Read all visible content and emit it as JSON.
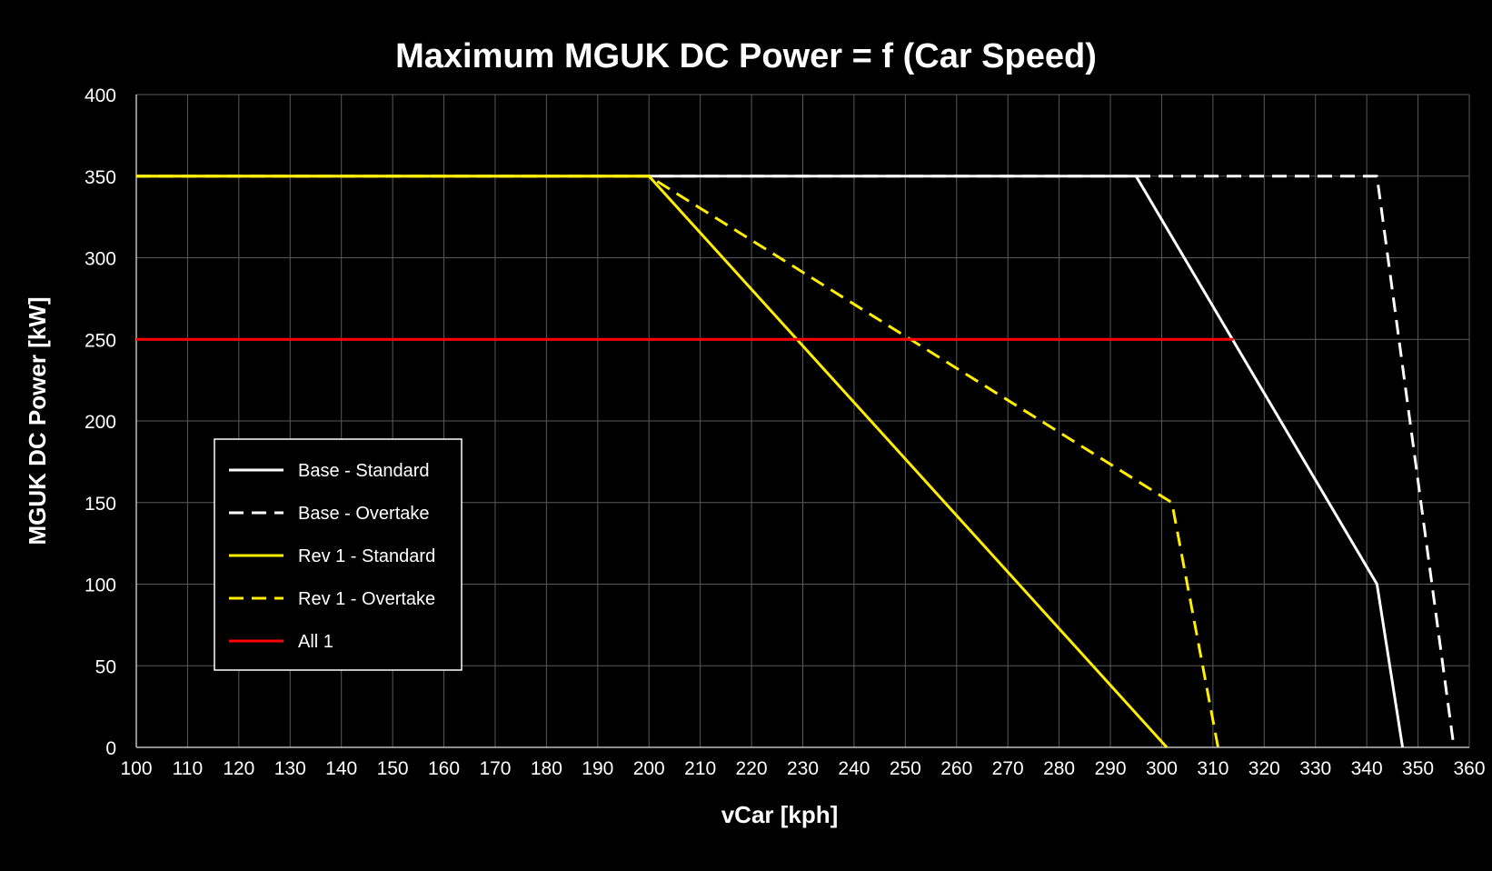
{
  "chart_data": {
    "type": "line",
    "title": "Maximum MGUK DC Power = f (Car Speed)",
    "xlabel": "vCar [kph]",
    "ylabel": "MGUK DC Power [kW]",
    "xlim": [
      100,
      360
    ],
    "ylim": [
      0,
      400
    ],
    "xticks": [
      100,
      110,
      120,
      130,
      140,
      150,
      160,
      170,
      180,
      190,
      200,
      210,
      220,
      230,
      240,
      250,
      260,
      270,
      280,
      290,
      300,
      310,
      320,
      330,
      340,
      350,
      360
    ],
    "yticks": [
      0,
      50,
      100,
      150,
      200,
      250,
      300,
      350,
      400
    ],
    "grid": true,
    "legend_position": "left",
    "series": [
      {
        "name": "Base - Standard",
        "color": "#ffffff",
        "dashed": false,
        "points": [
          [
            100,
            350
          ],
          [
            295,
            350
          ],
          [
            342,
            100
          ],
          [
            347,
            0
          ]
        ]
      },
      {
        "name": "Base - Overtake",
        "color": "#ffffff",
        "dashed": true,
        "points": [
          [
            100,
            350
          ],
          [
            342,
            350
          ],
          [
            357,
            0
          ]
        ]
      },
      {
        "name": "Rev 1 - Standard",
        "color": "#ffee00",
        "dashed": false,
        "points": [
          [
            100,
            350
          ],
          [
            200,
            350
          ],
          [
            301,
            0
          ]
        ]
      },
      {
        "name": "Rev 1 - Overtake",
        "color": "#ffee00",
        "dashed": true,
        "points": [
          [
            100,
            350
          ],
          [
            200,
            350
          ],
          [
            302,
            150
          ],
          [
            311,
            0
          ]
        ]
      },
      {
        "name": "All 1",
        "color": "#ff0000",
        "dashed": false,
        "points": [
          [
            100,
            250
          ],
          [
            314,
            250
          ]
        ]
      }
    ]
  }
}
